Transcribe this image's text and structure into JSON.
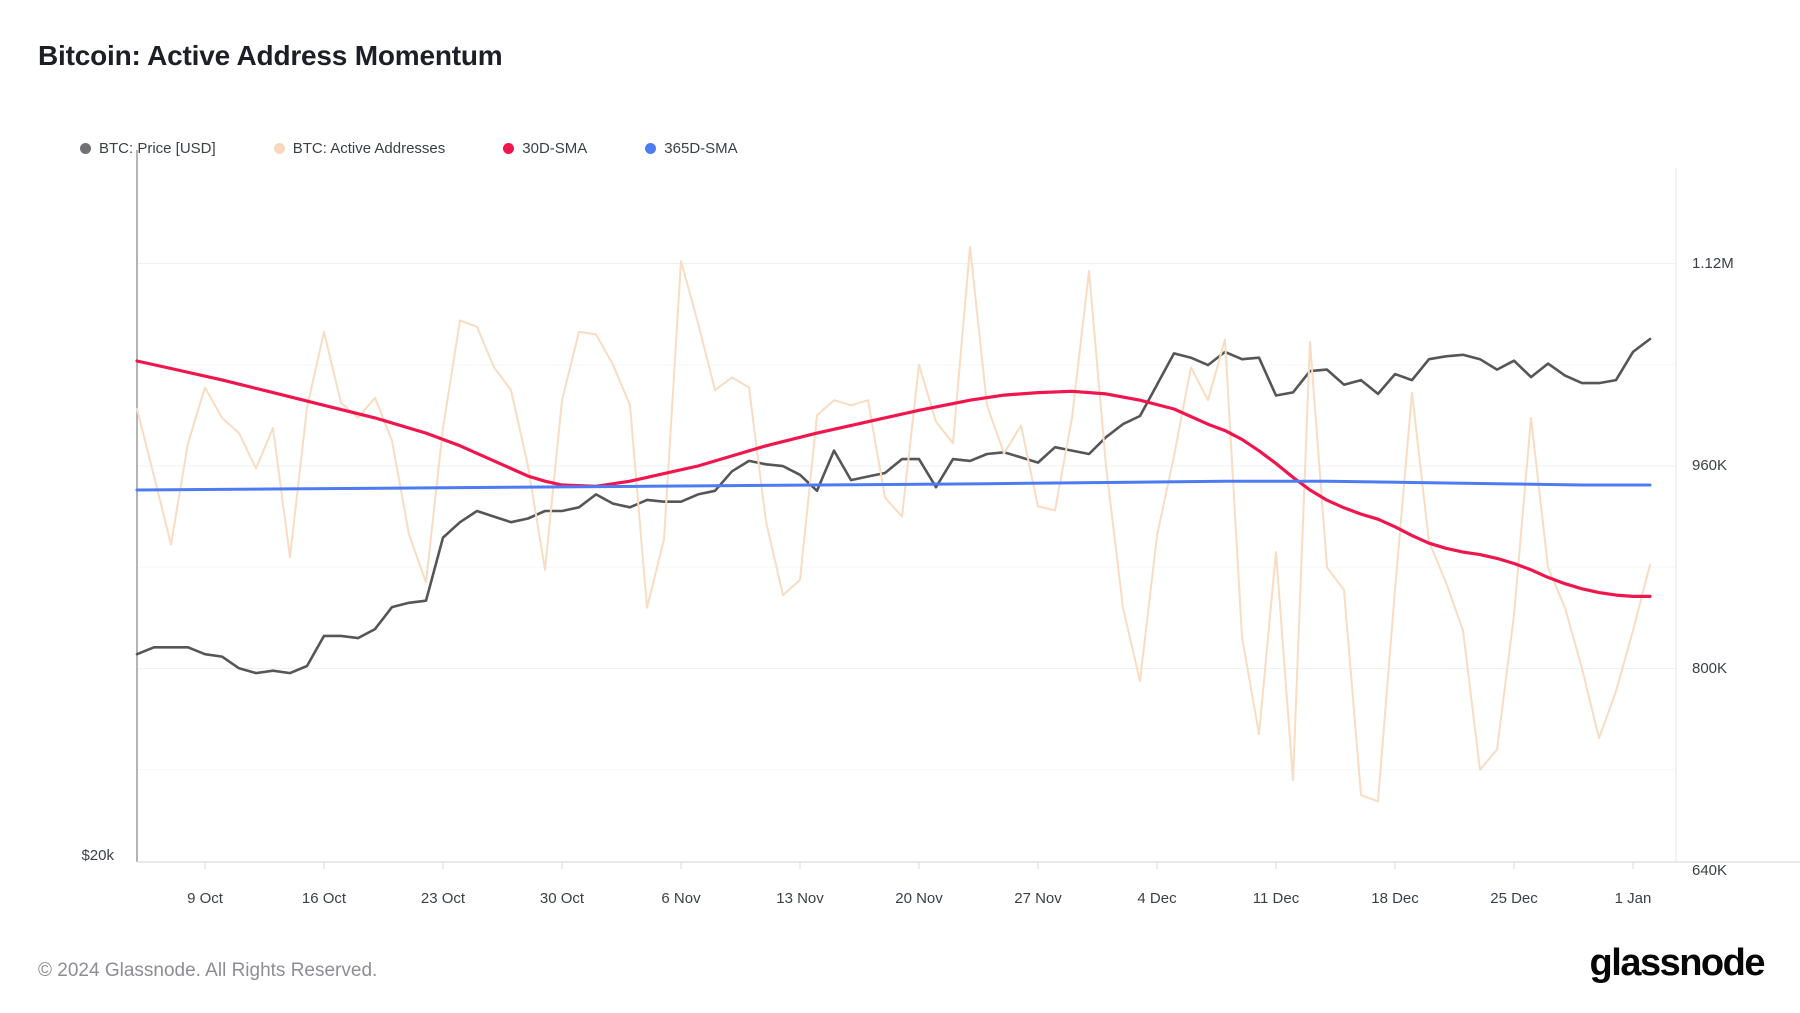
{
  "page": {
    "title": "Bitcoin: Active Address Momentum"
  },
  "legend": {
    "items": [
      {
        "label": "BTC: Price [USD]",
        "color": "#717175"
      },
      {
        "label": "BTC: Active Addresses",
        "color": "#f8d8bc"
      },
      {
        "label": "30D-SMA",
        "color": "#f0154d"
      },
      {
        "label": "365D-SMA",
        "color": "#4d7bf3"
      }
    ]
  },
  "footer": {
    "copyright": "© 2024 Glassnode. All Rights Reserved.",
    "logo_text": "glassnode"
  },
  "chart_data": {
    "type": "line",
    "title": "Bitcoin: Active Address Momentum",
    "start_date": "2023-10-05",
    "end_date": "2024-01-02",
    "grid": "horizontal-faint",
    "legend_position": "top-left",
    "x_axis": {
      "tick_labels": [
        "9 Oct",
        "16 Oct",
        "23 Oct",
        "30 Oct",
        "6 Nov",
        "13 Nov",
        "20 Nov",
        "27 Nov",
        "4 Dec",
        "11 Dec",
        "18 Dec",
        "25 Dec",
        "1 Jan"
      ],
      "tick_day_offsets": [
        4,
        11,
        18,
        25,
        32,
        39,
        46,
        53,
        60,
        67,
        74,
        81,
        88
      ]
    },
    "y_axis_right": {
      "units": "active addresses",
      "scale": "linear",
      "visible_range_k": [
        640,
        1200
      ],
      "ticks": [
        {
          "label": "1.12M",
          "value_k": 1120
        },
        {
          "label": "960K",
          "value_k": 960
        },
        {
          "label": "800K",
          "value_k": 800
        },
        {
          "label": "640K",
          "value_k": 640
        }
      ],
      "minor_grid_step_k": 80
    },
    "y_axis_left": {
      "units": "USD",
      "scale": "log",
      "ticks": [
        {
          "label": "$20k",
          "value_usd_k": 20
        }
      ]
    },
    "series": [
      {
        "name": "BTC: Price [USD]",
        "color": "#565659",
        "width": 2.6,
        "scale": "price",
        "points_day_usd_k": [
          [
            0,
            27.6
          ],
          [
            1,
            27.9
          ],
          [
            2,
            27.9
          ],
          [
            3,
            27.9
          ],
          [
            4,
            27.6
          ],
          [
            5,
            27.5
          ],
          [
            6,
            27.0
          ],
          [
            7,
            26.8
          ],
          [
            8,
            26.9
          ],
          [
            9,
            26.8
          ],
          [
            10,
            27.1
          ],
          [
            11,
            28.4
          ],
          [
            12,
            28.4
          ],
          [
            13,
            28.3
          ],
          [
            14,
            28.7
          ],
          [
            15,
            29.7
          ],
          [
            16,
            29.9
          ],
          [
            17,
            30.0
          ],
          [
            18,
            33.1
          ],
          [
            19,
            33.9
          ],
          [
            20,
            34.5
          ],
          [
            21,
            34.2
          ],
          [
            22,
            33.9
          ],
          [
            23,
            34.1
          ],
          [
            24,
            34.5
          ],
          [
            25,
            34.5
          ],
          [
            26,
            34.7
          ],
          [
            27,
            35.4
          ],
          [
            28,
            34.9
          ],
          [
            29,
            34.7
          ],
          [
            30,
            35.1
          ],
          [
            31,
            35.0
          ],
          [
            32,
            35.0
          ],
          [
            33,
            35.4
          ],
          [
            34,
            35.6
          ],
          [
            35,
            36.7
          ],
          [
            36,
            37.3
          ],
          [
            37,
            37.1
          ],
          [
            38,
            37.0
          ],
          [
            39,
            36.5
          ],
          [
            40,
            35.6
          ],
          [
            41,
            37.9
          ],
          [
            42,
            36.2
          ],
          [
            43,
            36.4
          ],
          [
            44,
            36.6
          ],
          [
            45,
            37.4
          ],
          [
            46,
            37.4
          ],
          [
            47,
            35.8
          ],
          [
            48,
            37.4
          ],
          [
            49,
            37.3
          ],
          [
            50,
            37.7
          ],
          [
            51,
            37.8
          ],
          [
            52,
            37.5
          ],
          [
            53,
            37.2
          ],
          [
            54,
            38.1
          ],
          [
            55,
            37.9
          ],
          [
            56,
            37.7
          ],
          [
            57,
            38.7
          ],
          [
            58,
            39.5
          ],
          [
            59,
            40.0
          ],
          [
            60,
            42.0
          ],
          [
            61,
            44.1
          ],
          [
            62,
            43.8
          ],
          [
            63,
            43.3
          ],
          [
            64,
            44.2
          ],
          [
            65,
            43.7
          ],
          [
            66,
            43.8
          ],
          [
            67,
            41.3
          ],
          [
            68,
            41.5
          ],
          [
            69,
            42.9
          ],
          [
            70,
            43.0
          ],
          [
            71,
            42.0
          ],
          [
            72,
            42.3
          ],
          [
            73,
            41.4
          ],
          [
            74,
            42.7
          ],
          [
            75,
            42.3
          ],
          [
            76,
            43.7
          ],
          [
            77,
            43.9
          ],
          [
            78,
            44.0
          ],
          [
            79,
            43.7
          ],
          [
            80,
            43.0
          ],
          [
            81,
            43.6
          ],
          [
            82,
            42.5
          ],
          [
            83,
            43.4
          ],
          [
            84,
            42.6
          ],
          [
            85,
            42.1
          ],
          [
            86,
            42.1
          ],
          [
            87,
            42.3
          ],
          [
            88,
            44.2
          ],
          [
            89,
            45.1
          ]
        ]
      },
      {
        "name": "BTC: Active Addresses",
        "color": "#f9dcc1",
        "width": 2,
        "scale": "addresses",
        "points_day_k": [
          [
            0,
            1005
          ],
          [
            1,
            952
          ],
          [
            2,
            898
          ],
          [
            3,
            978
          ],
          [
            4,
            1022
          ],
          [
            5,
            998
          ],
          [
            6,
            986
          ],
          [
            7,
            958
          ],
          [
            8,
            990
          ],
          [
            9,
            888
          ],
          [
            10,
            1006
          ],
          [
            11,
            1066
          ],
          [
            12,
            1010
          ],
          [
            13,
            998
          ],
          [
            14,
            1014
          ],
          [
            15,
            980
          ],
          [
            16,
            906
          ],
          [
            17,
            868
          ],
          [
            18,
            990
          ],
          [
            19,
            1075
          ],
          [
            20,
            1070
          ],
          [
            21,
            1038
          ],
          [
            22,
            1020
          ],
          [
            23,
            960
          ],
          [
            24,
            878
          ],
          [
            25,
            1012
          ],
          [
            26,
            1066
          ],
          [
            27,
            1064
          ],
          [
            28,
            1040
          ],
          [
            29,
            1008
          ],
          [
            30,
            848
          ],
          [
            31,
            902
          ],
          [
            32,
            1122
          ],
          [
            33,
            1073
          ],
          [
            34,
            1020
          ],
          [
            35,
            1030
          ],
          [
            36,
            1022
          ],
          [
            37,
            916
          ],
          [
            38,
            858
          ],
          [
            39,
            870
          ],
          [
            40,
            1000
          ],
          [
            41,
            1012
          ],
          [
            42,
            1008
          ],
          [
            43,
            1012
          ],
          [
            44,
            935
          ],
          [
            45,
            920
          ],
          [
            46,
            1040
          ],
          [
            47,
            995
          ],
          [
            48,
            978
          ],
          [
            49,
            1133
          ],
          [
            50,
            1008
          ],
          [
            51,
            970
          ],
          [
            52,
            992
          ],
          [
            53,
            928
          ],
          [
            54,
            925
          ],
          [
            55,
            998
          ],
          [
            56,
            1114
          ],
          [
            57,
            960
          ],
          [
            58,
            848
          ],
          [
            59,
            790
          ],
          [
            60,
            905
          ],
          [
            61,
            968
          ],
          [
            62,
            1038
          ],
          [
            63,
            1012
          ],
          [
            64,
            1060
          ],
          [
            65,
            825
          ],
          [
            66,
            748
          ],
          [
            67,
            892
          ],
          [
            68,
            712
          ],
          [
            69,
            1058
          ],
          [
            70,
            880
          ],
          [
            71,
            862
          ],
          [
            72,
            700
          ],
          [
            73,
            695
          ],
          [
            74,
            862
          ],
          [
            75,
            1018
          ],
          [
            76,
            900
          ],
          [
            77,
            868
          ],
          [
            78,
            830
          ],
          [
            79,
            720
          ],
          [
            80,
            736
          ],
          [
            81,
            842
          ],
          [
            82,
            998
          ],
          [
            83,
            880
          ],
          [
            84,
            848
          ],
          [
            85,
            800
          ],
          [
            86,
            745
          ],
          [
            87,
            782
          ],
          [
            88,
            830
          ],
          [
            89,
            882
          ]
        ]
      },
      {
        "name": "30D-SMA",
        "color": "#f0154d",
        "width": 3.2,
        "scale": "addresses",
        "points_day_k": [
          [
            0,
            1043
          ],
          [
            2,
            1037
          ],
          [
            5,
            1028
          ],
          [
            8,
            1018
          ],
          [
            11,
            1008
          ],
          [
            14,
            998
          ],
          [
            17,
            986
          ],
          [
            19,
            976
          ],
          [
            21,
            964
          ],
          [
            22,
            958
          ],
          [
            23,
            952
          ],
          [
            24,
            948
          ],
          [
            25,
            945
          ],
          [
            27,
            944
          ],
          [
            29,
            948
          ],
          [
            31,
            954
          ],
          [
            33,
            960
          ],
          [
            35,
            968
          ],
          [
            37,
            976
          ],
          [
            40,
            986
          ],
          [
            43,
            995
          ],
          [
            46,
            1004
          ],
          [
            49,
            1012
          ],
          [
            51,
            1016
          ],
          [
            53,
            1018
          ],
          [
            55,
            1019
          ],
          [
            57,
            1017
          ],
          [
            59,
            1012
          ],
          [
            61,
            1005
          ],
          [
            63,
            993
          ],
          [
            64,
            988
          ],
          [
            65,
            981
          ],
          [
            66,
            972
          ],
          [
            67,
            962
          ],
          [
            68,
            951
          ],
          [
            69,
            941
          ],
          [
            70,
            933
          ],
          [
            71,
            927
          ],
          [
            72,
            922
          ],
          [
            73,
            918
          ],
          [
            74,
            912
          ],
          [
            75,
            905
          ],
          [
            76,
            899
          ],
          [
            77,
            895
          ],
          [
            78,
            892
          ],
          [
            79,
            890
          ],
          [
            80,
            887
          ],
          [
            81,
            883
          ],
          [
            82,
            878
          ],
          [
            83,
            872
          ],
          [
            84,
            867
          ],
          [
            85,
            863
          ],
          [
            86,
            860
          ],
          [
            87,
            858
          ],
          [
            88,
            857
          ],
          [
            89,
            857
          ]
        ]
      },
      {
        "name": "365D-SMA",
        "color": "#4d7bf3",
        "width": 3,
        "scale": "addresses",
        "points_day_k": [
          [
            0,
            941
          ],
          [
            10,
            942
          ],
          [
            20,
            943
          ],
          [
            30,
            944
          ],
          [
            40,
            945
          ],
          [
            50,
            946
          ],
          [
            57,
            947
          ],
          [
            64,
            948
          ],
          [
            70,
            948
          ],
          [
            75,
            947
          ],
          [
            80,
            946
          ],
          [
            85,
            945
          ],
          [
            89,
            945
          ]
        ]
      }
    ]
  }
}
